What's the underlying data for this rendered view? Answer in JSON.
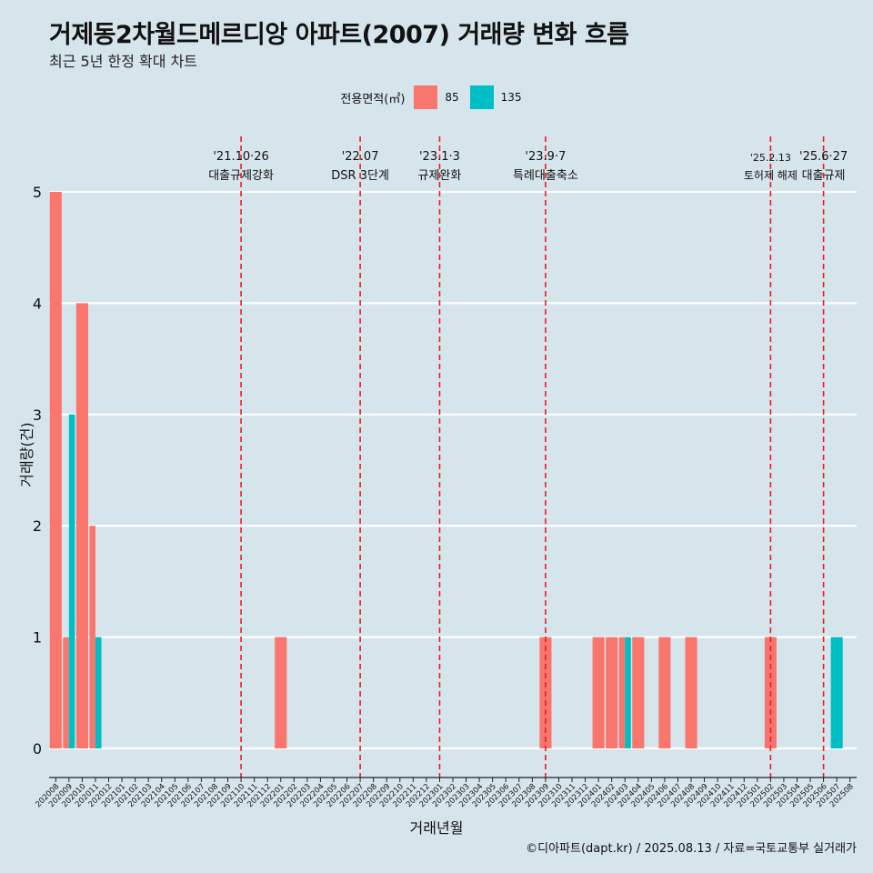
{
  "title": "거제동2차월드메르디앙 아파트(2007) 거래량 변화 흐름",
  "subtitle": "최근 5년 한정 확대 차트",
  "caption": "©디아파트(dapt.kr) / 2025.08.13 / 자료=국토교통부 실거래가",
  "legend": {
    "title": "전용면적(㎡)",
    "items": [
      {
        "label": "85",
        "color": "#f8766d"
      },
      {
        "label": "135",
        "color": "#00bfc4"
      }
    ]
  },
  "chart_data": {
    "type": "bar",
    "xlabel": "거래년월",
    "ylabel": "거래량(건)",
    "ylim": [
      0,
      5
    ],
    "yticks": [
      "0",
      "1",
      "2",
      "3",
      "4",
      "5"
    ],
    "grid": "horizontal",
    "legend_position": "top",
    "categories": [
      "202008",
      "202009",
      "202010",
      "202011",
      "202012",
      "202101",
      "202102",
      "202103",
      "202104",
      "202105",
      "202106",
      "202107",
      "202108",
      "202109",
      "202110",
      "202111",
      "202112",
      "202201",
      "202202",
      "202203",
      "202204",
      "202205",
      "202206",
      "202207",
      "202208",
      "202209",
      "202210",
      "202211",
      "202212",
      "202301",
      "202302",
      "202303",
      "202304",
      "202305",
      "202306",
      "202307",
      "202308",
      "202309",
      "202310",
      "202311",
      "202312",
      "202401",
      "202402",
      "202403",
      "202404",
      "202405",
      "202406",
      "202407",
      "202408",
      "202409",
      "202410",
      "202411",
      "202412",
      "202501",
      "202502",
      "202503",
      "202504",
      "202505",
      "202506",
      "202507",
      "202508"
    ],
    "series": [
      {
        "name": "85",
        "color": "#f8766d",
        "points": [
          {
            "x": "202008",
            "y": 5
          },
          {
            "x": "202009",
            "y": 1
          },
          {
            "x": "202010",
            "y": 4
          },
          {
            "x": "202011",
            "y": 2
          },
          {
            "x": "202201",
            "y": 1
          },
          {
            "x": "202309",
            "y": 1
          },
          {
            "x": "202401",
            "y": 1
          },
          {
            "x": "202402",
            "y": 1
          },
          {
            "x": "202403",
            "y": 1
          },
          {
            "x": "202404",
            "y": 1
          },
          {
            "x": "202406",
            "y": 1
          },
          {
            "x": "202408",
            "y": 1
          },
          {
            "x": "202502",
            "y": 1
          }
        ]
      },
      {
        "name": "135",
        "color": "#00bfc4",
        "points": [
          {
            "x": "202009",
            "y": 3
          },
          {
            "x": "202011",
            "y": 1
          },
          {
            "x": "202403",
            "y": 1
          },
          {
            "x": "202507",
            "y": 1
          }
        ]
      }
    ],
    "annotations": [
      {
        "date": "'21.10·26",
        "label": "대출규제강화",
        "x": "202110"
      },
      {
        "date": "'22.07",
        "label": "DSR 3단계",
        "x": "202207"
      },
      {
        "date": "'23.1·3",
        "label": "규제완화",
        "x": "202301"
      },
      {
        "date": "'23.9·7",
        "label": "특례대출축소",
        "x": "202309"
      },
      {
        "date": "'25.2.13",
        "label": "토허제 해제",
        "x": "202502"
      },
      {
        "date": "'25.6·27",
        "label": "대출규제",
        "x": "202506"
      }
    ]
  }
}
